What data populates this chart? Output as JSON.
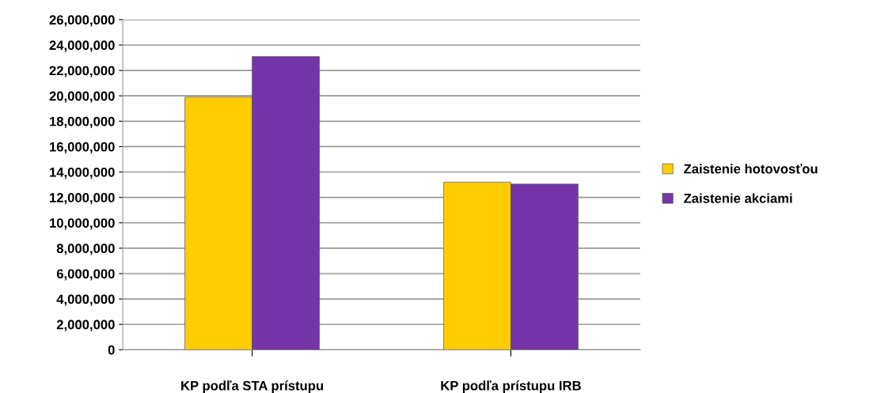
{
  "chart_data": {
    "type": "bar",
    "categories": [
      "KP podľa STA prístupu",
      "KP podľa prístupu IRB"
    ],
    "series": [
      {
        "name": "Zaistenie hotovosťou",
        "color": "#ffcc00",
        "values": [
          19900000,
          13200000
        ]
      },
      {
        "name": "Zaistenie akciami",
        "color": "#7535a8",
        "values": [
          23100000,
          13050000
        ]
      }
    ],
    "ylim": [
      0,
      26000000
    ],
    "yticks": [
      {
        "value": 0,
        "label": "0"
      },
      {
        "value": 2000000,
        "label": "2,000,000"
      },
      {
        "value": 4000000,
        "label": "4,000,000"
      },
      {
        "value": 6000000,
        "label": "6,000,000"
      },
      {
        "value": 8000000,
        "label": "8,000,000"
      },
      {
        "value": 10000000,
        "label": "10,000,000"
      },
      {
        "value": 12000000,
        "label": "12,000,000"
      },
      {
        "value": 14000000,
        "label": "14,000,000"
      },
      {
        "value": 16000000,
        "label": "16,000,000"
      },
      {
        "value": 18000000,
        "label": "18,000,000"
      },
      {
        "value": 20000000,
        "label": "20,000,000"
      },
      {
        "value": 22000000,
        "label": "22,000,000"
      },
      {
        "value": 24000000,
        "label": "24,000,000"
      },
      {
        "value": 26000000,
        "label": "26,000,000"
      }
    ],
    "grid": "y",
    "legend": "right"
  }
}
